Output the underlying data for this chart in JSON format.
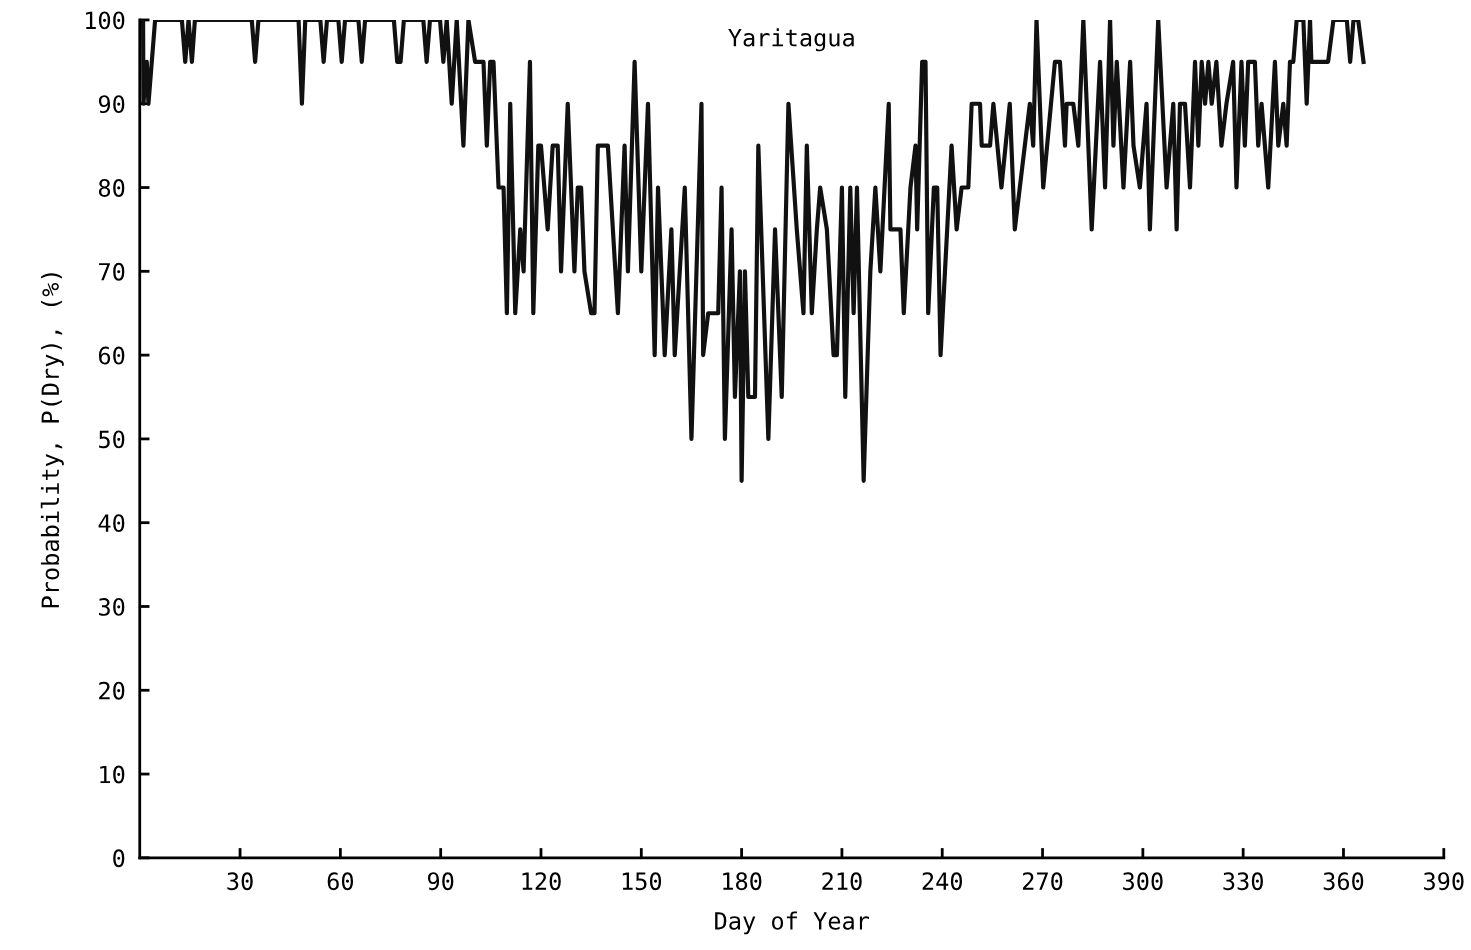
{
  "chart_data": {
    "type": "line",
    "title": "Yaritagua",
    "xlabel": "Day of Year",
    "ylabel": "Probability, P(Dry), (%)",
    "xlim": [
      0,
      390
    ],
    "xticks": [
      30,
      60,
      90,
      120,
      150,
      180,
      210,
      240,
      270,
      300,
      330,
      360,
      390
    ],
    "ylim": [
      0,
      100
    ],
    "yticks": [
      0,
      10,
      20,
      30,
      40,
      50,
      60,
      70,
      80,
      90,
      100
    ],
    "marker": "none",
    "line_style": "solid",
    "series": [
      {
        "color": "#111111",
        "x": [
          1,
          1.1,
          2.1,
          2.6,
          4.6,
          12.6,
          13.6,
          14.6,
          15.6,
          16.5,
          33.5,
          34.5,
          35.5,
          47.5,
          48.5,
          49.5,
          54,
          55,
          56,
          59.4,
          60.4,
          61.4,
          65.4,
          66.4,
          67.4,
          76,
          77,
          78,
          79,
          84.8,
          85.8,
          86.8,
          89.8,
          90.8,
          91.8,
          93.3,
          94.8,
          96.8,
          98.3,
          100.3,
          102.8,
          103.8,
          104.8,
          105.8,
          107.3,
          108.8,
          109.8,
          110.8,
          112.3,
          113.8,
          114.8,
          116.7,
          117.7,
          119.2,
          120,
          122,
          123.5,
          125,
          126,
          128,
          130,
          131,
          132,
          133,
          135,
          136,
          137,
          140,
          143,
          145,
          146,
          148,
          150,
          152,
          153,
          154,
          155,
          157,
          159,
          160,
          163,
          165,
          168,
          168.5,
          170,
          173,
          174,
          175,
          177,
          178,
          179.5,
          180,
          181,
          182,
          184,
          185,
          188,
          190,
          192,
          194,
          196.5,
          198.5,
          199.5,
          201,
          202.5,
          203.5,
          205.5,
          207.5,
          208.5,
          210,
          211,
          212.5,
          213.5,
          214.5,
          216.5,
          218.5,
          220,
          221.5,
          224,
          224.5,
          227.5,
          228.5,
          230.5,
          232,
          232.5,
          234,
          235,
          235.8,
          237.5,
          238.5,
          239.5,
          242.8,
          244.3,
          245.8,
          247.8,
          248.8,
          251.3,
          251.8,
          254.3,
          255.3,
          257.7,
          260.2,
          261.7,
          263.2,
          266.2,
          267.2,
          268.2,
          270.2,
          273.7,
          275.2,
          276.7,
          277.2,
          279.2,
          280.7,
          282.2,
          284.7,
          287.2,
          288.7,
          290.2,
          291.2,
          292.2,
          294.2,
          296.2,
          297.2,
          299.1,
          301.1,
          302.1,
          304.6,
          307.1,
          309.1,
          310.1,
          311.1,
          312.6,
          314.1,
          315.6,
          316.6,
          317.6,
          318.6,
          319.6,
          320.6,
          322,
          323.5,
          325,
          327,
          328,
          329.5,
          330.5,
          331.5,
          333.5,
          334.5,
          335.5,
          337.5,
          339.5,
          340.5,
          342,
          343,
          344,
          345,
          346,
          348,
          349,
          350,
          350.4,
          355.4,
          357,
          361,
          362,
          363,
          364.4,
          366
        ],
        "values": [
          100,
          90,
          95,
          90,
          100,
          100,
          95,
          100,
          95,
          100,
          100,
          95,
          100,
          100,
          90,
          100,
          100,
          95,
          100,
          100,
          95,
          100,
          100,
          95,
          100,
          100,
          95,
          95,
          100,
          100,
          95,
          100,
          100,
          95,
          100,
          90,
          100,
          85,
          100,
          95,
          95,
          85,
          95,
          95,
          80,
          80,
          65,
          90,
          65,
          75,
          70,
          95,
          65,
          85,
          85,
          75,
          85,
          85,
          70,
          90,
          70,
          80,
          80,
          70,
          65,
          65,
          85,
          85,
          65,
          85,
          70,
          95,
          70,
          90,
          75,
          60,
          80,
          60,
          75,
          60,
          80,
          50,
          90,
          60,
          65,
          65,
          80,
          50,
          75,
          55,
          70,
          45,
          70,
          55,
          55,
          85,
          50,
          75,
          55,
          90,
          75,
          65,
          85,
          65,
          75,
          80,
          75,
          60,
          60,
          80,
          55,
          80,
          65,
          80,
          45,
          70,
          80,
          70,
          90,
          75,
          75,
          65,
          80,
          85,
          75,
          95,
          95,
          65,
          80,
          80,
          60,
          85,
          75,
          80,
          80,
          90,
          90,
          85,
          85,
          90,
          80,
          90,
          75,
          80,
          90,
          85,
          100,
          80,
          95,
          95,
          85,
          90,
          90,
          85,
          100,
          75,
          95,
          80,
          100,
          85,
          95,
          80,
          95,
          85,
          80,
          90,
          75,
          100,
          80,
          90,
          75,
          90,
          90,
          80,
          95,
          85,
          95,
          90,
          95,
          90,
          95,
          85,
          90,
          95,
          80,
          95,
          85,
          95,
          95,
          85,
          90,
          80,
          95,
          85,
          90,
          85,
          95,
          95,
          100,
          100,
          90,
          100,
          95,
          95,
          100,
          100,
          95,
          100,
          100,
          95
        ]
      }
    ]
  }
}
